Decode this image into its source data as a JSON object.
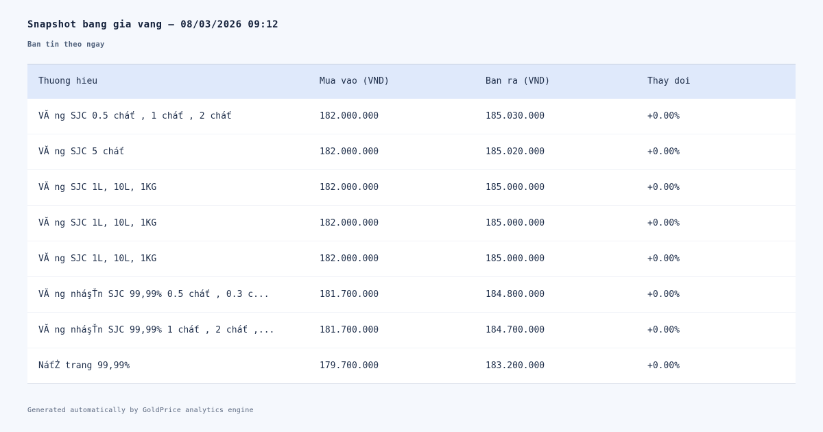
{
  "page": {
    "title": "Snapshot bang gia vang — 08/03/2026 09:12",
    "subtitle": "Ban tin theo ngay",
    "footer": "Generated automatically by GoldPrice analytics engine"
  },
  "table": {
    "columns": [
      "Thuong hieu",
      "Mua vao (VND)",
      "Ban ra (VND)",
      "Thay doi"
    ],
    "rows": [
      {
        "brand": "VĂ ng SJC 0.5 cháť , 1 cháť , 2 cháť",
        "buy": "182.000.000",
        "sell": "185.030.000",
        "change": "+0.00%"
      },
      {
        "brand": "VĂ ng SJC 5 cháť",
        "buy": "182.000.000",
        "sell": "185.020.000",
        "change": "+0.00%"
      },
      {
        "brand": "VĂ ng SJC 1L, 10L, 1KG",
        "buy": "182.000.000",
        "sell": "185.000.000",
        "change": "+0.00%"
      },
      {
        "brand": "VĂ ng SJC 1L, 10L, 1KG",
        "buy": "182.000.000",
        "sell": "185.000.000",
        "change": "+0.00%"
      },
      {
        "brand": "VĂ ng SJC 1L, 10L, 1KG",
        "buy": "182.000.000",
        "sell": "185.000.000",
        "change": "+0.00%"
      },
      {
        "brand": "VĂ ng nháşŤn SJC 99,99% 0.5 cháť , 0.3 c...",
        "buy": "181.700.000",
        "sell": "184.800.000",
        "change": "+0.00%"
      },
      {
        "brand": "VĂ ng nháşŤn SJC 99,99% 1 cháť , 2 cháť ,...",
        "buy": "181.700.000",
        "sell": "184.700.000",
        "change": "+0.00%"
      },
      {
        "brand": "NáťŻ trang 99,99%",
        "buy": "179.700.000",
        "sell": "183.200.000",
        "change": "+0.00%"
      }
    ]
  },
  "colors": {
    "page_background": "#f5f8fd",
    "table_background": "#ffffff",
    "header_background": "#dfe9fb",
    "text_primary": "#1d2d49",
    "text_muted": "#51627c",
    "border_top": "#c8d0dd",
    "border_bottom": "#dbe0ea"
  }
}
